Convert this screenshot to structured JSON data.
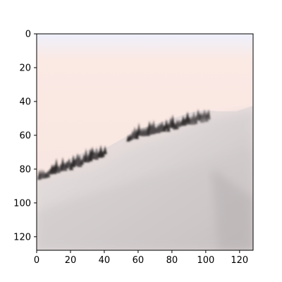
{
  "image": {
    "subject": "misty mountain ridge with dark evergreen trees emerging from fog",
    "colors": {
      "sky": "#fbe9e4",
      "sky_top": "#eef0fb",
      "fog_light": "#ece6e6",
      "fog_mid": "#d6d0d0",
      "fog_dark": "#bdb7b8",
      "trees": "#4f4a4b",
      "trees_dark": "#2f2b2c"
    }
  },
  "axes": {
    "x_ticks": [
      "0",
      "20",
      "40",
      "60",
      "80",
      "100",
      "120"
    ],
    "y_ticks": [
      "0",
      "20",
      "40",
      "60",
      "80",
      "100",
      "120"
    ],
    "x_range": [
      0,
      128
    ],
    "y_range": [
      0,
      128
    ]
  }
}
